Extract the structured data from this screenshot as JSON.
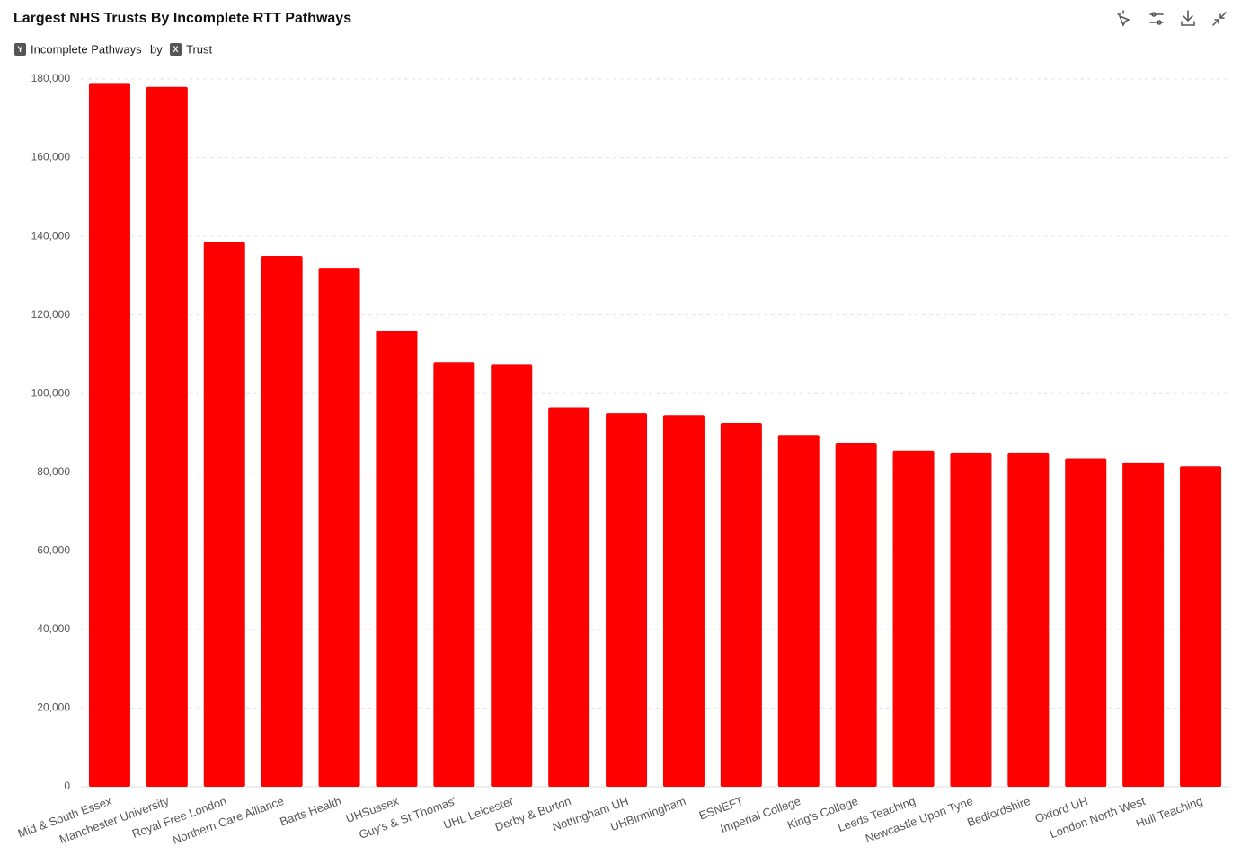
{
  "chart_data": {
    "type": "bar",
    "title": "Largest NHS Trusts By Incomplete RTT Pathways",
    "y_badge": "Y",
    "y_field": "Incomplete Pathways",
    "by_text": "by",
    "x_badge": "X",
    "x_field": "Trust",
    "categories": [
      "Mid & South Essex",
      "Manchester University",
      "Royal Free London",
      "Northern Care Alliance",
      "Barts Health",
      "UHSussex",
      "Guy's & St Thomas'",
      "UHL Leicester",
      "Derby & Burton",
      "Nottingham UH",
      "UHBirmingham",
      "ESNEFT",
      "Imperial College",
      "King's College",
      "Leeds Teaching",
      "Newcastle Upon Tyne",
      "Bedfordshire",
      "Oxford UH",
      "London North West",
      "Hull Teaching"
    ],
    "values": [
      179000,
      178000,
      138500,
      135000,
      132000,
      116000,
      108000,
      107500,
      96500,
      95000,
      94500,
      92500,
      89500,
      87500,
      85500,
      85000,
      85000,
      83500,
      82500,
      81500
    ],
    "color": "#ff0000",
    "ylim": [
      0,
      180000
    ],
    "yticks": [
      0,
      {
        "value": 20000,
        "label": "20,000"
      },
      {
        "value": 40000,
        "label": "40,000"
      },
      {
        "value": 60000,
        "label": "60,000"
      },
      {
        "value": 80000,
        "label": "80,000"
      },
      {
        "value": 100000,
        "label": "100,000"
      },
      {
        "value": 120000,
        "label": "120,000"
      },
      {
        "value": 140000,
        "label": "140,000"
      },
      {
        "value": 160000,
        "label": "160,000"
      },
      {
        "value": 180000,
        "label": "180,000"
      }
    ],
    "grid": true
  }
}
